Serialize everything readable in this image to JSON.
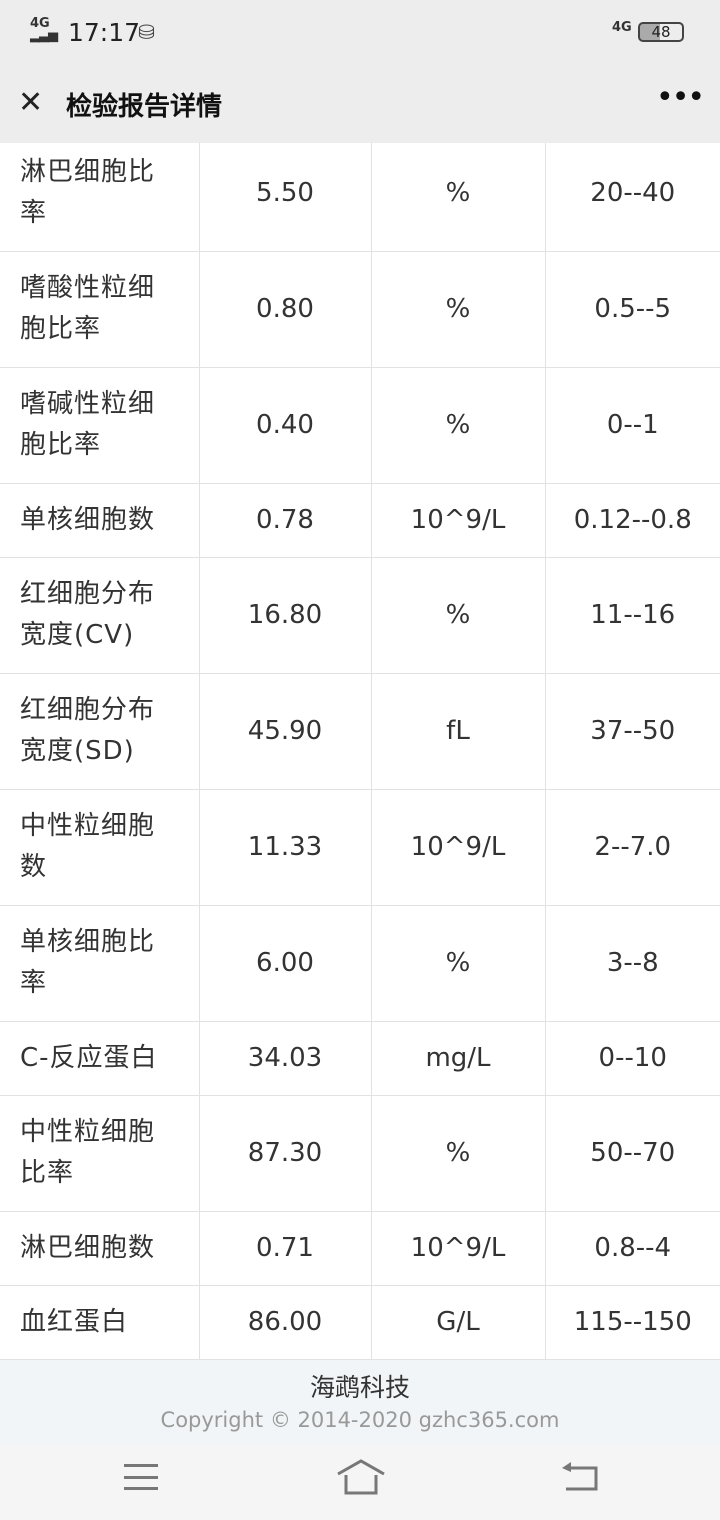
{
  "status_bar": {
    "network": "4G",
    "time": "17:17",
    "network_right": "4G",
    "battery": "48"
  },
  "header": {
    "title": "检验报告详情"
  },
  "rows": [
    {
      "name": "淋巴细胞比率",
      "value": "5.50",
      "unit": "%",
      "range": "20--40"
    },
    {
      "name": "嗜酸性粒细胞比率",
      "value": "0.80",
      "unit": "%",
      "range": "0.5--5"
    },
    {
      "name": "嗜碱性粒细胞比率",
      "value": "0.40",
      "unit": "%",
      "range": "0--1"
    },
    {
      "name": "单核细胞数",
      "value": "0.78",
      "unit": "10^9/L",
      "range": "0.12--0.8"
    },
    {
      "name": "红细胞分布宽度(CV)",
      "value": "16.80",
      "unit": "%",
      "range": "11--16"
    },
    {
      "name": "红细胞分布宽度(SD)",
      "value": "45.90",
      "unit": "fL",
      "range": "37--50"
    },
    {
      "name": "中性粒细胞数",
      "value": "11.33",
      "unit": "10^9/L",
      "range": "2--7.0"
    },
    {
      "name": "单核细胞比率",
      "value": "6.00",
      "unit": "%",
      "range": "3--8"
    },
    {
      "name": "C-反应蛋白",
      "value": "34.03",
      "unit": "mg/L",
      "range": "0--10"
    },
    {
      "name": "中性粒细胞比率",
      "value": "87.30",
      "unit": "%",
      "range": "50--70"
    },
    {
      "name": "淋巴细胞数",
      "value": "0.71",
      "unit": "10^9/L",
      "range": "0.8--4"
    },
    {
      "name": "血红蛋白",
      "value": "86.00",
      "unit": "G/L",
      "range": "115--150"
    }
  ],
  "footer": {
    "company": "海鹉科技",
    "copyright": "Copyright © 2014-2020 gzhc365.com"
  }
}
